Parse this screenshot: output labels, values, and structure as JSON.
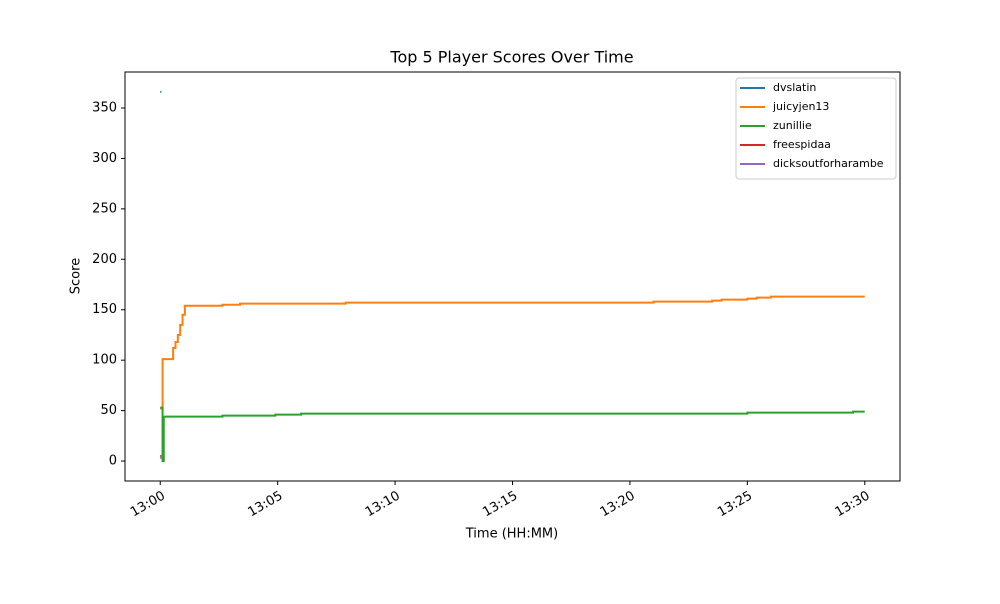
{
  "chart_data": {
    "type": "line",
    "title": "Top 5 Player Scores Over Time",
    "x_label": "Time (HH:MM)",
    "y_label": "Score",
    "drawstyle": "steps-post",
    "series": [
      {
        "name": "dvslatin",
        "color": "#1f77b4",
        "x": [
          0,
          0.05
        ],
        "values": [
          366,
          366
        ]
      },
      {
        "name": "juicyjen13",
        "color": "#ff7f0e",
        "x": [
          0,
          0.1,
          0.45,
          0.55,
          0.65,
          0.75,
          0.85,
          0.95,
          1.05,
          2.65,
          3.4,
          7.9,
          21,
          23.5,
          23.9,
          25,
          25.4,
          26,
          30
        ],
        "values": [
          52,
          101,
          101,
          112,
          118,
          125,
          135,
          145,
          154,
          155,
          156,
          157,
          158,
          159,
          160,
          161,
          162,
          163,
          163
        ]
      },
      {
        "name": "zunillie",
        "color": "#2ca02c",
        "x": [
          0,
          0.1,
          0.15,
          2.65,
          4.9,
          6.0,
          25,
          29.5,
          30
        ],
        "values": [
          53,
          0,
          44,
          45,
          46,
          47,
          48,
          49,
          49
        ]
      },
      {
        "name": "freespidaa",
        "color": "#d62728",
        "x": [
          0,
          0.05
        ],
        "values": [
          5,
          5
        ]
      },
      {
        "name": "dicksoutforharambe",
        "color": "#9467bd",
        "x": [
          0,
          0.05
        ],
        "values": [
          3,
          3
        ]
      }
    ],
    "xlim": [
      -1.5,
      31.5
    ],
    "xticks": [
      {
        "value": 0,
        "label": "13:00"
      },
      {
        "value": 5,
        "label": "13:05"
      },
      {
        "value": 10,
        "label": "13:10"
      },
      {
        "value": 15,
        "label": "13:15"
      },
      {
        "value": 20,
        "label": "13:20"
      },
      {
        "value": 25,
        "label": "13:25"
      },
      {
        "value": 30,
        "label": "13:30"
      }
    ],
    "ylim": [
      -19.8,
      385.7
    ],
    "yticks": [
      0,
      50,
      100,
      150,
      200,
      250,
      300,
      350
    ],
    "legend": "upper right"
  }
}
